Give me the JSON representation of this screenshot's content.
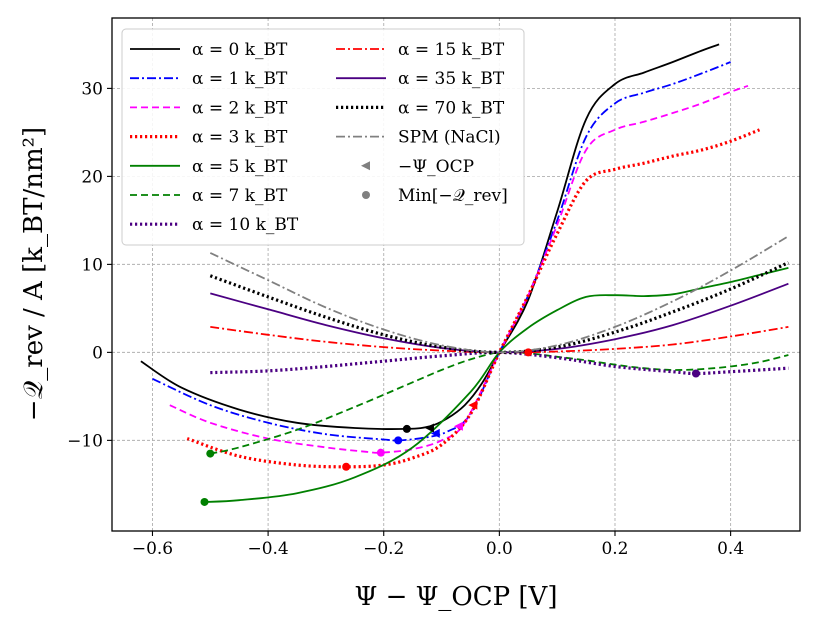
{
  "chart_data": {
    "type": "line",
    "title": "",
    "xlabel": "Ψ − Ψ_OCP [V]",
    "ylabel": "−𝒬_rev / A [k_BT/nm²]",
    "xlim": [
      -0.67,
      0.52
    ],
    "ylim": [
      -20.3,
      38.0
    ],
    "xticks": [
      -0.6,
      -0.4,
      -0.2,
      0.0,
      0.2,
      0.4
    ],
    "yticks": [
      -10,
      0,
      10,
      20,
      30
    ],
    "xtick_labels": [
      "−0.6",
      "−0.4",
      "−0.2",
      "0.0",
      "0.2",
      "0.4"
    ],
    "ytick_labels": [
      "−10",
      "0",
      "10",
      "20",
      "30"
    ],
    "grid": true,
    "legend_position": "top-left",
    "series": [
      {
        "name": "α = 0 k_BT",
        "color": "#000000",
        "style": "solid",
        "x": [
          -0.62,
          -0.55,
          -0.45,
          -0.35,
          -0.25,
          -0.16,
          -0.12,
          -0.09,
          -0.06,
          -0.03,
          0.0,
          0.05,
          0.1,
          0.15,
          0.2,
          0.25,
          0.3,
          0.35,
          0.38
        ],
        "y": [
          -1.0,
          -4.0,
          -6.5,
          -8.0,
          -8.6,
          -8.7,
          -8.4,
          -7.5,
          -6.0,
          -3.5,
          0.0,
          6.0,
          16.0,
          26.5,
          30.5,
          31.8,
          33.0,
          34.3,
          35.0
        ]
      },
      {
        "name": "α = 1 k_BT",
        "color": "#0000ff",
        "style": "dashdot",
        "x": [
          -0.6,
          -0.5,
          -0.4,
          -0.3,
          -0.2,
          -0.175,
          -0.13,
          -0.09,
          -0.05,
          0.0,
          0.05,
          0.1,
          0.15,
          0.2,
          0.25,
          0.3,
          0.35,
          0.4
        ],
        "y": [
          -3.0,
          -6.0,
          -8.0,
          -9.3,
          -9.9,
          -10.0,
          -9.7,
          -9.0,
          -7.0,
          0.0,
          6.5,
          15.0,
          24.5,
          28.3,
          29.5,
          30.5,
          31.7,
          33.0
        ]
      },
      {
        "name": "α = 2 k_BT",
        "color": "#ff00ff",
        "style": "dashed",
        "x": [
          -0.57,
          -0.5,
          -0.4,
          -0.3,
          -0.23,
          -0.205,
          -0.15,
          -0.1,
          -0.06,
          0.0,
          0.05,
          0.1,
          0.15,
          0.2,
          0.25,
          0.3,
          0.35,
          0.4,
          0.43
        ],
        "y": [
          -6.0,
          -8.0,
          -9.8,
          -10.8,
          -11.3,
          -11.4,
          -11.0,
          -10.0,
          -8.0,
          0.0,
          6.5,
          14.5,
          23.0,
          25.3,
          26.2,
          27.2,
          28.3,
          29.6,
          30.3
        ]
      },
      {
        "name": "α = 3 k_BT",
        "color": "#ff0000",
        "style": "dotted",
        "x": [
          -0.54,
          -0.45,
          -0.35,
          -0.265,
          -0.2,
          -0.15,
          -0.1,
          -0.05,
          0.0,
          0.05,
          0.1,
          0.15,
          0.2,
          0.25,
          0.3,
          0.35,
          0.4,
          0.45
        ],
        "y": [
          -9.8,
          -11.8,
          -12.8,
          -13.0,
          -12.8,
          -12.0,
          -10.5,
          -7.0,
          0.0,
          6.5,
          13.5,
          19.5,
          20.8,
          21.5,
          22.3,
          23.0,
          24.0,
          25.3
        ]
      },
      {
        "name": "α = 5 k_BT",
        "color": "#008000",
        "style": "solid",
        "x": [
          -0.51,
          -0.45,
          -0.35,
          -0.25,
          -0.15,
          -0.05,
          0.0,
          0.05,
          0.1,
          0.15,
          0.2,
          0.25,
          0.3,
          0.35,
          0.4,
          0.45,
          0.5
        ],
        "y": [
          -17.0,
          -16.8,
          -16.0,
          -14.2,
          -10.8,
          -4.5,
          0.0,
          2.8,
          4.8,
          6.3,
          6.5,
          6.4,
          6.6,
          7.3,
          8.0,
          8.8,
          9.6
        ]
      },
      {
        "name": "α = 7 k_BT",
        "color": "#008000",
        "style": "dashed",
        "x": [
          -0.5,
          -0.45,
          -0.35,
          -0.25,
          -0.15,
          -0.1,
          -0.05,
          0.0,
          0.05,
          0.1,
          0.15,
          0.2,
          0.25,
          0.3,
          0.35,
          0.4,
          0.45,
          0.5
        ],
        "y": [
          -11.5,
          -10.8,
          -8.8,
          -6.2,
          -3.4,
          -2.0,
          -0.8,
          0.0,
          -0.1,
          -0.5,
          -0.9,
          -1.4,
          -1.8,
          -2.0,
          -1.9,
          -1.6,
          -1.1,
          -0.3
        ]
      },
      {
        "name": "α = 10 k_BT",
        "color": "#4b0082",
        "style": "dotted",
        "x": [
          -0.5,
          -0.4,
          -0.3,
          -0.2,
          -0.1,
          0.0,
          0.1,
          0.2,
          0.3,
          0.34,
          0.4,
          0.5
        ],
        "y": [
          -2.3,
          -2.1,
          -1.6,
          -1.0,
          -0.4,
          0.0,
          -0.6,
          -1.6,
          -2.2,
          -2.4,
          -2.2,
          -1.8
        ]
      },
      {
        "name": "α = 15 k_BT",
        "color": "#ff0000",
        "style": "dashdot",
        "x": [
          -0.5,
          -0.4,
          -0.3,
          -0.2,
          -0.1,
          0.0,
          0.1,
          0.2,
          0.3,
          0.4,
          0.5
        ],
        "y": [
          2.9,
          2.0,
          1.2,
          0.6,
          0.2,
          0.0,
          0.1,
          0.4,
          0.9,
          1.8,
          2.9
        ]
      },
      {
        "name": "α = 35 k_BT",
        "color": "#4b0082",
        "style": "solid",
        "x": [
          -0.5,
          -0.4,
          -0.3,
          -0.2,
          -0.1,
          0.0,
          0.1,
          0.2,
          0.3,
          0.4,
          0.5
        ],
        "y": [
          6.7,
          4.9,
          3.1,
          1.6,
          0.5,
          0.0,
          0.4,
          1.5,
          3.1,
          5.3,
          7.8
        ]
      },
      {
        "name": "α = 70 k_BT",
        "color": "#000000",
        "style": "dotted",
        "x": [
          -0.5,
          -0.4,
          -0.3,
          -0.2,
          -0.1,
          0.0,
          0.1,
          0.2,
          0.3,
          0.4,
          0.5
        ],
        "y": [
          8.7,
          6.3,
          4.0,
          2.0,
          0.6,
          0.0,
          0.6,
          2.3,
          4.6,
          7.2,
          10.2
        ]
      },
      {
        "name": "SPM (NaCl)",
        "color": "#808080",
        "style": "dashdot",
        "x": [
          -0.5,
          -0.4,
          -0.3,
          -0.2,
          -0.1,
          0.0,
          0.1,
          0.2,
          0.3,
          0.4,
          0.5
        ],
        "y": [
          11.3,
          8.2,
          5.1,
          2.6,
          0.8,
          0.0,
          0.8,
          2.9,
          5.8,
          9.3,
          13.2
        ]
      }
    ],
    "ocp_markers": [
      {
        "x": -0.12,
        "y": -8.6,
        "color": "#000000"
      },
      {
        "x": -0.11,
        "y": -9.2,
        "color": "#0000ff"
      },
      {
        "x": -0.07,
        "y": -8.4,
        "color": "#ff00ff"
      },
      {
        "x": -0.045,
        "y": -6.0,
        "color": "#ff0000"
      }
    ],
    "min_markers": [
      {
        "x": -0.16,
        "y": -8.7,
        "color": "#000000"
      },
      {
        "x": -0.175,
        "y": -10.0,
        "color": "#0000ff"
      },
      {
        "x": -0.205,
        "y": -11.4,
        "color": "#ff00ff"
      },
      {
        "x": -0.265,
        "y": -13.0,
        "color": "#ff0000"
      },
      {
        "x": -0.51,
        "y": -17.0,
        "color": "#008000"
      },
      {
        "x": -0.5,
        "y": -11.5,
        "color": "#008000"
      },
      {
        "x": 0.34,
        "y": -2.4,
        "color": "#4b0082"
      },
      {
        "x": 0.05,
        "y": 0.0,
        "color": "#ff0000"
      }
    ],
    "legend": {
      "col1": [
        {
          "series": 0,
          "label": "α = 0 k_BT"
        },
        {
          "series": 1,
          "label": "α = 1 k_BT"
        },
        {
          "series": 2,
          "label": "α = 2 k_BT"
        },
        {
          "series": 3,
          "label": "α = 3 k_BT"
        },
        {
          "series": 4,
          "label": "α = 5 k_BT"
        },
        {
          "series": 5,
          "label": "α = 7 k_BT"
        },
        {
          "series": 6,
          "label": "α = 10 k_BT"
        }
      ],
      "col2": [
        {
          "series": 7,
          "label": "α = 15 k_BT"
        },
        {
          "series": 8,
          "label": "α = 35 k_BT"
        },
        {
          "series": 9,
          "label": "α = 70 k_BT"
        },
        {
          "series": 10,
          "label": "SPM (NaCl)"
        },
        {
          "marker": "triangle",
          "label": "−Ψ_OCP",
          "color": "#808080"
        },
        {
          "marker": "circle",
          "label": "Min[−𝒬_rev]",
          "color": "#808080"
        }
      ]
    }
  }
}
